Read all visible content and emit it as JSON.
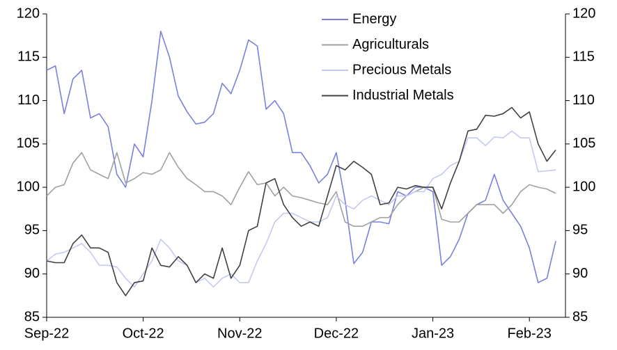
{
  "chart_data": {
    "type": "line",
    "categories": [
      "Sep-22",
      null,
      null,
      null,
      null,
      null,
      null,
      null,
      null,
      null,
      null,
      "Oct-22",
      null,
      null,
      null,
      null,
      null,
      null,
      null,
      null,
      null,
      null,
      "Nov-22",
      null,
      null,
      null,
      null,
      null,
      null,
      null,
      null,
      null,
      null,
      "Dec-22",
      null,
      null,
      null,
      null,
      null,
      null,
      null,
      null,
      null,
      null,
      "Jan-23",
      null,
      null,
      null,
      null,
      null,
      null,
      null,
      null,
      null,
      null,
      "Feb-23",
      null,
      null,
      null
    ],
    "series": [
      {
        "name": "Energy",
        "color": "#7b7fe0",
        "values": [
          113.5,
          114,
          108.5,
          112.5,
          113.5,
          108,
          108.5,
          107,
          101.5,
          100,
          105,
          103.5,
          110,
          118,
          115,
          110.5,
          108.7,
          107.3,
          107.5,
          108.5,
          112,
          110.8,
          113.5,
          117,
          116.3,
          109,
          110,
          108.5,
          104,
          104,
          102.5,
          100.5,
          101.5,
          104,
          98.5,
          91.2,
          92.5,
          96,
          96,
          95.8,
          99.5,
          99,
          100,
          100,
          99.5,
          91,
          92,
          94,
          97,
          98,
          98.5,
          101.5,
          98.5,
          97,
          95.5,
          93,
          89,
          89.5,
          93.8
        ]
      },
      {
        "name": "Agriculturals",
        "color": "#a0a0a0",
        "values": [
          99,
          100,
          100.3,
          102.8,
          104,
          102,
          101.5,
          101,
          104,
          100.5,
          101,
          101.7,
          101.5,
          102,
          104,
          102.3,
          101,
          100.3,
          99.5,
          99.5,
          99,
          98,
          100,
          101.8,
          100.3,
          100.5,
          99,
          100,
          99,
          98.8,
          98.5,
          98.2,
          98,
          99.5,
          96,
          95.5,
          95.5,
          96,
          96.5,
          96.5,
          98,
          99,
          99.5,
          100,
          100,
          96.3,
          96,
          96,
          97,
          98,
          98,
          98,
          97,
          98,
          99.5,
          100.3,
          100,
          99.8,
          99.3
        ]
      },
      {
        "name": "Precious Metals",
        "color": "#c6c8f5",
        "values": [
          91.5,
          92.3,
          92.5,
          93,
          93.5,
          92.5,
          91,
          91,
          90.8,
          89.5,
          88.5,
          90,
          91.5,
          94,
          93,
          91.5,
          91,
          89,
          89.5,
          88.5,
          89.5,
          90,
          89,
          89,
          91.5,
          93.5,
          96,
          97,
          97,
          96.5,
          96,
          96,
          96.5,
          99,
          98,
          97.5,
          98.5,
          99,
          98.5,
          98,
          99,
          99,
          99.5,
          99.5,
          101,
          101.5,
          102.5,
          103,
          105.7,
          105.7,
          104.8,
          105.8,
          105.7,
          106.5,
          105.7,
          105.7,
          101.8,
          101.9,
          102
        ]
      },
      {
        "name": "Industrial Metals",
        "color": "#404040",
        "values": [
          91.5,
          91.3,
          91.3,
          93.5,
          94.5,
          93,
          93,
          92.5,
          89,
          87.5,
          89,
          89.2,
          93,
          91,
          90.8,
          92,
          91,
          89,
          90,
          89.5,
          93,
          89.5,
          91,
          95,
          95.5,
          100.5,
          101,
          98,
          96.5,
          95.5,
          96,
          95.5,
          99,
          102.5,
          102,
          103,
          102.3,
          101.5,
          98,
          98.2,
          100,
          99.8,
          100.2,
          100,
          100,
          97.5,
          100.5,
          103,
          106.5,
          106.7,
          108.3,
          108.2,
          108.5,
          109.2,
          108,
          108.7,
          105,
          103,
          104.3
        ]
      }
    ],
    "ylim": [
      85,
      120
    ],
    "yticks": [
      85,
      90,
      95,
      100,
      105,
      110,
      115,
      120
    ],
    "y2lim": [
      85,
      120
    ],
    "y2ticks": [
      85,
      90,
      95,
      100,
      105,
      110,
      115,
      120
    ],
    "grid": false,
    "legend": "top"
  }
}
